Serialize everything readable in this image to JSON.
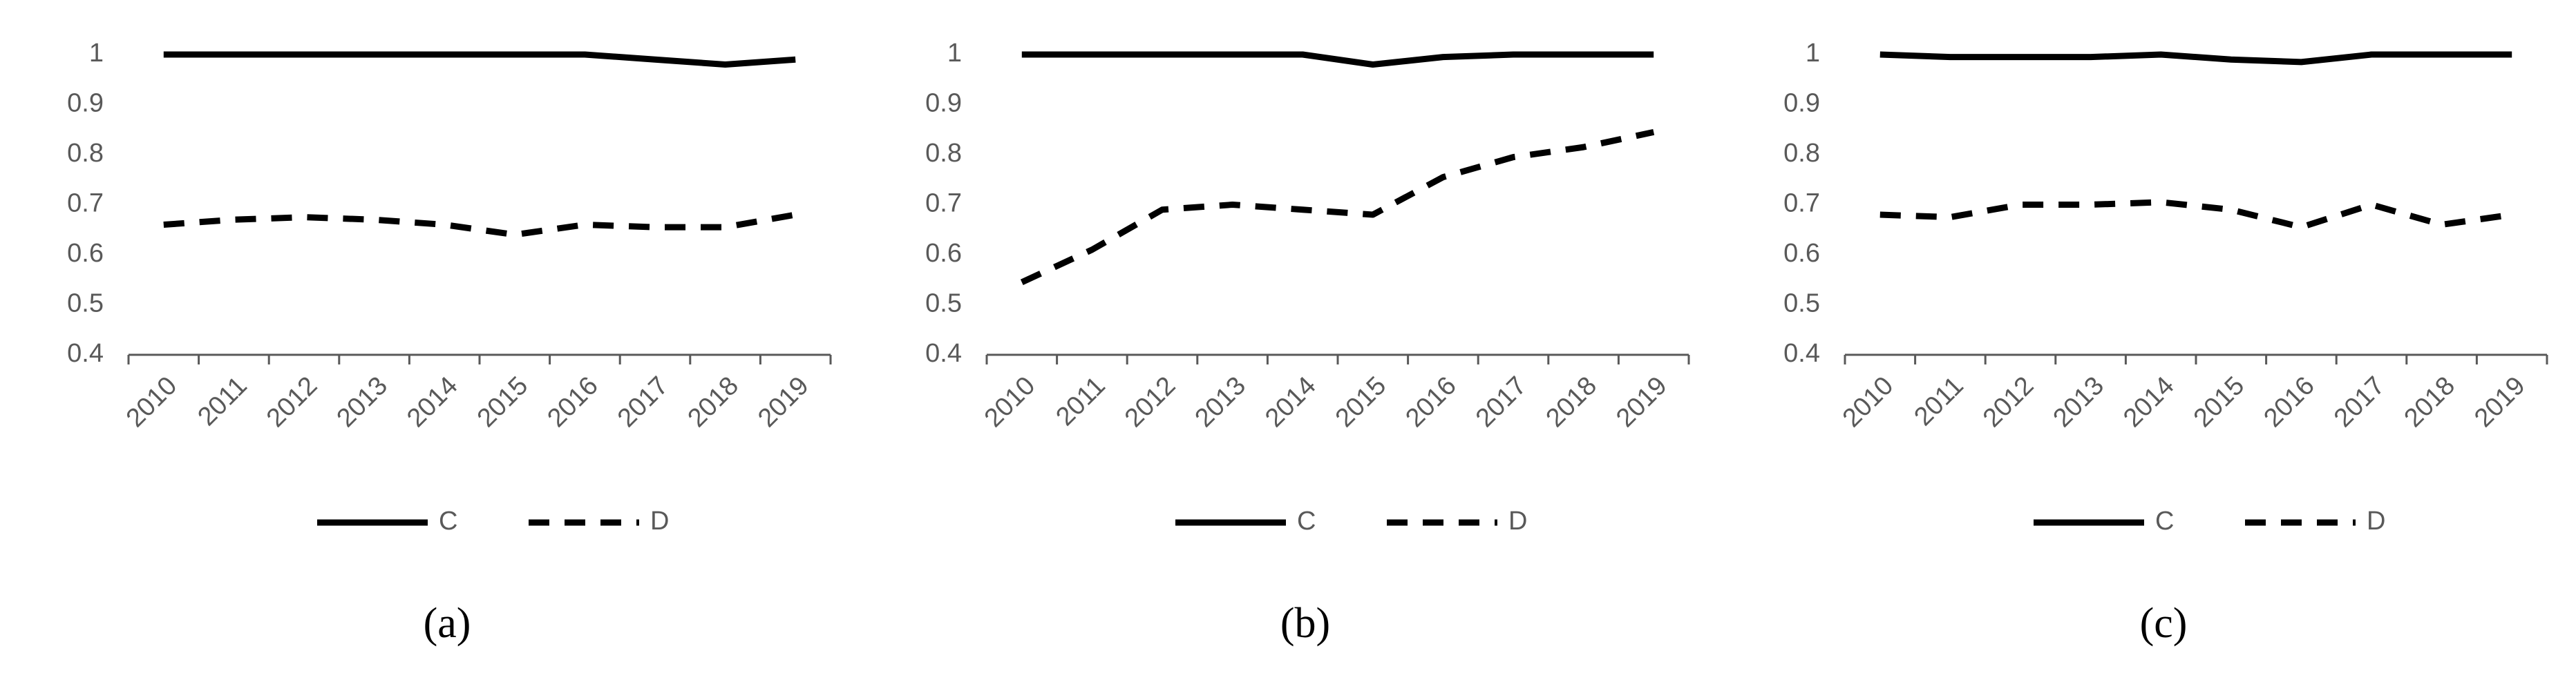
{
  "chart_data": [
    {
      "type": "line",
      "label": "(a)",
      "categories": [
        "2010",
        "2011",
        "2012",
        "2013",
        "2014",
        "2015",
        "2016",
        "2017",
        "2018",
        "2019"
      ],
      "series": [
        {
          "name": "C",
          "color": "#000000",
          "dash": "solid",
          "values": [
            1,
            1,
            1,
            1,
            1,
            1,
            1,
            0.99,
            0.98,
            0.99
          ]
        },
        {
          "name": "D",
          "color": "#000000",
          "dash": "dashed",
          "values": [
            0.66,
            0.67,
            0.675,
            0.67,
            0.66,
            0.64,
            0.66,
            0.655,
            0.655,
            0.68
          ]
        }
      ],
      "ylim": [
        0.4,
        1
      ],
      "yticks": [
        0.4,
        0.5,
        0.6,
        0.7,
        0.8,
        0.9,
        1
      ],
      "legend": "bottom"
    },
    {
      "type": "line",
      "label": "(b)",
      "categories": [
        "2010",
        "2011",
        "2012",
        "2013",
        "2014",
        "2015",
        "2016",
        "2017",
        "2018",
        "2019"
      ],
      "series": [
        {
          "name": "C",
          "color": "#000000",
          "dash": "solid",
          "values": [
            1,
            1,
            1,
            1,
            1,
            0.98,
            0.995,
            1,
            1,
            1
          ]
        },
        {
          "name": "D",
          "color": "#000000",
          "dash": "dashed",
          "values": [
            0.545,
            0.61,
            0.69,
            0.7,
            0.69,
            0.68,
            0.755,
            0.795,
            0.815,
            0.845
          ]
        }
      ],
      "ylim": [
        0.4,
        1
      ],
      "yticks": [
        0.4,
        0.5,
        0.6,
        0.7,
        0.8,
        0.9,
        1
      ],
      "legend": "bottom"
    },
    {
      "type": "line",
      "label": "(c)",
      "categories": [
        "2010",
        "2011",
        "2012",
        "2013",
        "2014",
        "2015",
        "2016",
        "2017",
        "2018",
        "2019"
      ],
      "series": [
        {
          "name": "C",
          "color": "#000000",
          "dash": "solid",
          "values": [
            1,
            0.995,
            0.995,
            0.995,
            1,
            0.99,
            0.985,
            1,
            1,
            1
          ]
        },
        {
          "name": "D",
          "color": "#000000",
          "dash": "dashed",
          "values": [
            0.68,
            0.675,
            0.7,
            0.7,
            0.705,
            0.69,
            0.655,
            0.7,
            0.66,
            0.68
          ]
        }
      ],
      "ylim": [
        0.4,
        1
      ],
      "yticks": [
        0.4,
        0.5,
        0.6,
        0.7,
        0.8,
        0.9,
        1
      ],
      "legend": "bottom"
    }
  ]
}
